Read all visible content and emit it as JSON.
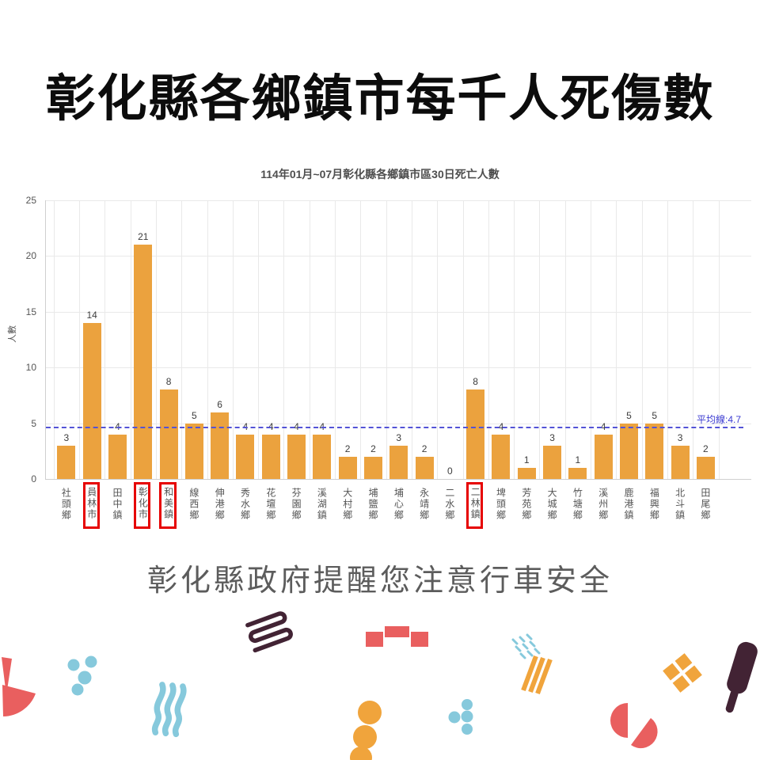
{
  "page": {
    "title": "彰化縣各鄉鎮市每千人死傷數",
    "footer_slogan": "彰化縣政府提醒您注意行車安全"
  },
  "chart_data": {
    "type": "bar",
    "title": "114年01月~07月彰化縣各鄉鎮市區30日死亡人數",
    "xlabel": "",
    "ylabel": "人數",
    "ylim": [
      0,
      25
    ],
    "yticks": [
      0,
      5,
      10,
      15,
      20,
      25
    ],
    "grid": true,
    "legend_position": "none",
    "categories": [
      "社頭鄉",
      "員林市",
      "田中鎮",
      "彰化市",
      "和美鎮",
      "線西鄉",
      "伸港鄉",
      "秀水鄉",
      "花壇鄉",
      "芬園鄉",
      "溪湖鎮",
      "大村鄉",
      "埔鹽鄉",
      "埔心鄉",
      "永靖鄉",
      "二水鄉",
      "二林鎮",
      "埤頭鄉",
      "芳苑鄉",
      "大城鄉",
      "竹塘鄉",
      "溪州鄉",
      "鹿港鎮",
      "福興鄉",
      "北斗鎮",
      "田尾鄉"
    ],
    "values": [
      3,
      14,
      4,
      21,
      8,
      5,
      6,
      4,
      4,
      4,
      4,
      2,
      2,
      3,
      2,
      0,
      8,
      4,
      1,
      3,
      1,
      4,
      5,
      5,
      3,
      2
    ],
    "highlighted_categories": [
      "員林市",
      "彰化市",
      "和美鎮",
      "二林鎮"
    ],
    "average": 4.7,
    "average_label": "平均線:4.7"
  },
  "theme": {
    "bar_color": "#eba23e",
    "average_line_color": "#5353d6",
    "average_label_color": "#3b3bd1",
    "highlight_box_color": "#e60000",
    "grid_color": "#e9e9e9",
    "axis_line_color": "#cfcfcf",
    "axis_text_color": "#555555",
    "value_label_color": "#3c3c3c",
    "title_color": "#0c0c0c",
    "chart_title_color": "#4e4e4e",
    "slogan_color": "#5c5c5c",
    "confetti_colors": {
      "coral": "#e95f5f",
      "sky": "#86c9dc",
      "amber": "#f0a43c",
      "plum": "#422334"
    }
  }
}
